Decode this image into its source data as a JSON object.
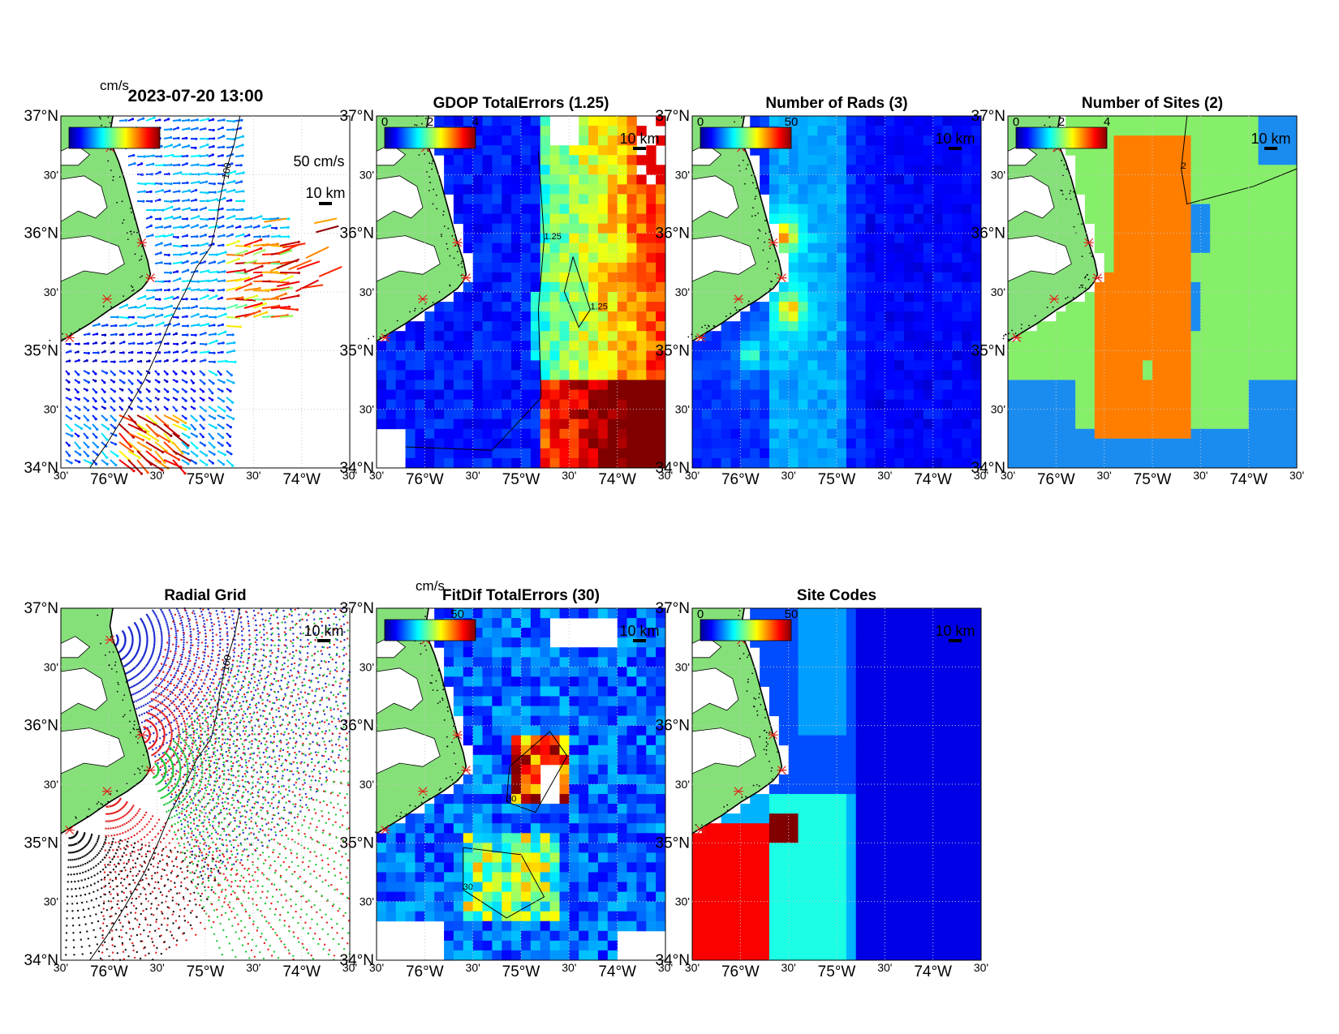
{
  "figure": {
    "timestamp": "2023-07-20 13:00",
    "panel_titles": [
      "",
      "GDOP TotalErrors (1.25)",
      "Number of Rads (3)",
      "Number of Sites (2)",
      "Radial Grid",
      "FitDif TotalErrors (30)",
      "Site Codes"
    ],
    "lat_labels": [
      "37°N",
      "30'",
      "36°N",
      "30'",
      "35°N",
      "30'",
      "34°N"
    ],
    "lon_labels": [
      "30'",
      "76°W",
      "30'",
      "75°W",
      "30'",
      "74°W",
      "30'"
    ],
    "colorbar_unit": "cm/s",
    "scale_vector_label": "50 cm/s",
    "scale_bar_label": "10 km",
    "colorbar_ticks": {
      "gdop": [
        "0",
        "2",
        "4"
      ],
      "rads": [
        "0",
        "50"
      ],
      "sites": [
        "0",
        "2",
        "4"
      ],
      "fitdif": [
        "50"
      ],
      "codes": [
        "0",
        "50"
      ]
    },
    "contour_labels": {
      "bathymetry": "100",
      "gdop": "1.25",
      "fitdif": "30",
      "sites": "2"
    }
  },
  "colors": {
    "land": "#86e07a",
    "coast": "#000000",
    "site_marker": "#e0241c",
    "radial_sets": [
      "#1f2fd0",
      "#e52020",
      "#22c83a",
      "#111111"
    ]
  },
  "chart_data": [
    {
      "type": "heatmap",
      "panel": "surface current vectors",
      "title": "2023-07-20 13:00",
      "colorbar": {
        "label": "cm/s"
      },
      "scale_vector": "50 cm/s",
      "scale_bar": "10 km",
      "xlim": [
        -76.5,
        -73.5
      ],
      "ylim": [
        34.0,
        37.0
      ],
      "sites": [
        [
          -76.0,
          36.45
        ],
        [
          -75.67,
          35.97
        ],
        [
          -75.52,
          35.47
        ],
        [
          -76.0,
          35.22
        ],
        [
          -76.45,
          34.83
        ]
      ]
    },
    {
      "type": "heatmap",
      "panel": "gdop",
      "title": "GDOP TotalErrors (1.25)",
      "colorbar_range": [
        0,
        4
      ],
      "contour_level": 1.25
    },
    {
      "type": "heatmap",
      "panel": "rads",
      "title": "Number of Rads (3)",
      "colorbar_range": [
        0,
        50
      ]
    },
    {
      "type": "heatmap",
      "panel": "sites",
      "title": "Number of Sites (2)",
      "colorbar_range": [
        0,
        4
      ],
      "contour_level": 2
    },
    {
      "type": "scatter",
      "panel": "radial grid",
      "title": "Radial Grid"
    },
    {
      "type": "heatmap",
      "panel": "fitdif",
      "title": "FitDif TotalErrors (30)",
      "colorbar": {
        "label": "cm/s"
      },
      "contour_level": 30
    },
    {
      "type": "heatmap",
      "panel": "site codes",
      "title": "Site Codes",
      "colorbar_range": [
        0,
        50
      ]
    }
  ]
}
